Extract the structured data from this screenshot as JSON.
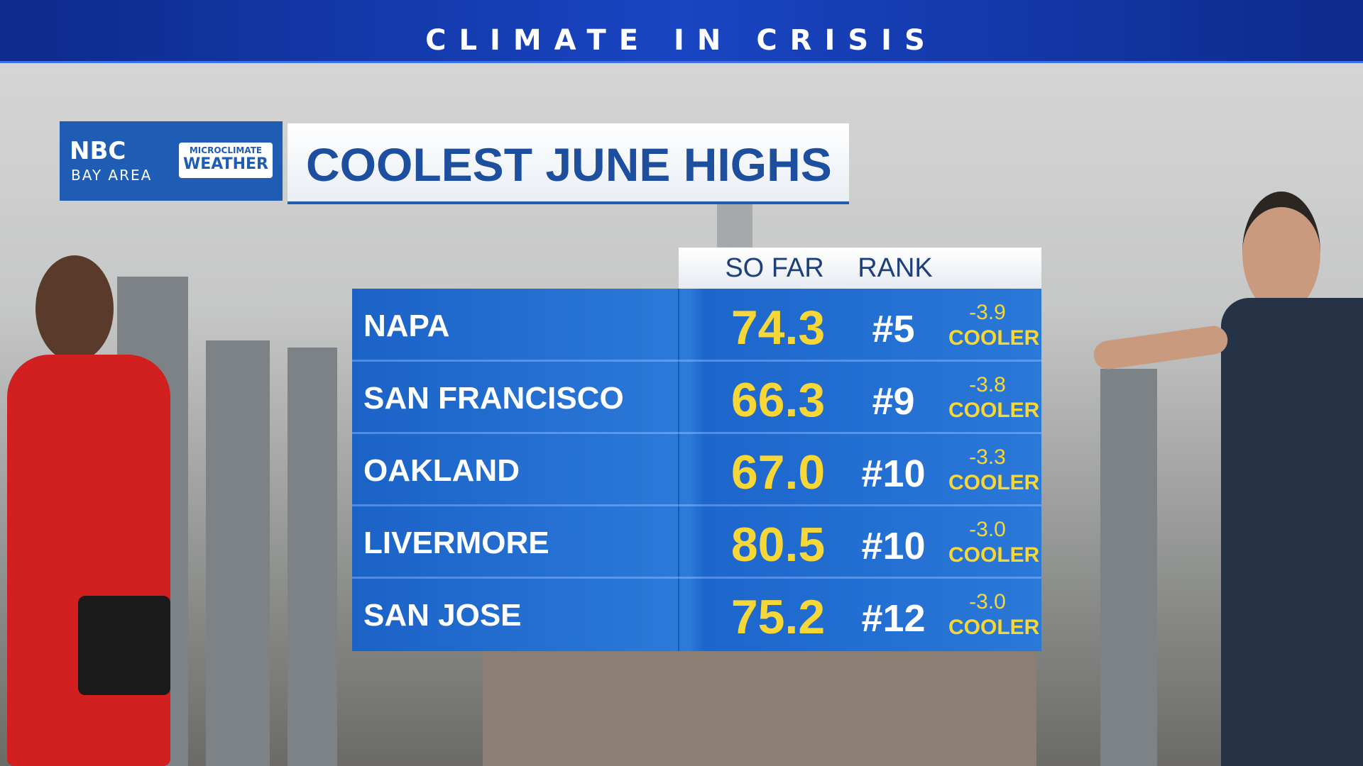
{
  "banner": {
    "title": "CLIMATE IN CRISIS"
  },
  "logo": {
    "network": "NBC",
    "region": "BAY AREA",
    "badge_top": "MICROCLIMATE",
    "badge_bottom": "WEATHER"
  },
  "graphic": {
    "title": "COOLEST JUNE HIGHS"
  },
  "table": {
    "headers": [
      "SO FAR",
      "RANK"
    ],
    "rows": [
      [
        "NAPA",
        "74.3",
        "#5",
        "-3.9",
        "COOLER"
      ],
      [
        "SAN FRANCISCO",
        "66.3",
        "#9",
        "-3.8",
        "COOLER"
      ],
      [
        "OAKLAND",
        "67.0",
        "#10",
        "-3.3",
        "COOLER"
      ],
      [
        "LIVERMORE",
        "80.5",
        "#10",
        "-3.0",
        "COOLER"
      ],
      [
        "SAN JOSE",
        "75.2",
        "#12",
        "-3.0",
        "COOLER"
      ]
    ]
  }
}
